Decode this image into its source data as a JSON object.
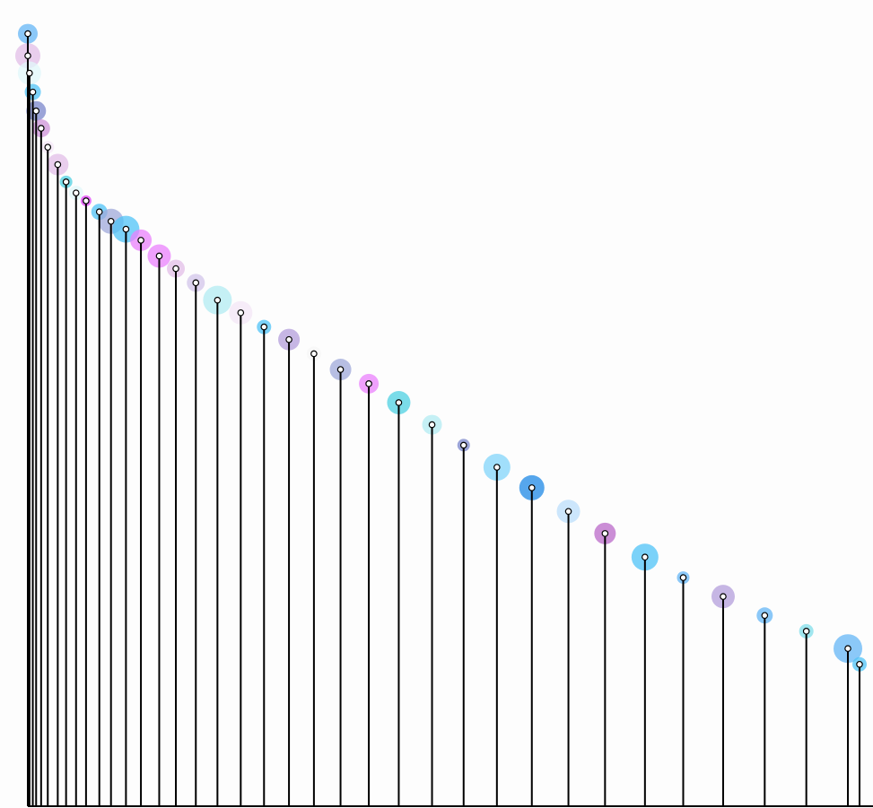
{
  "chart_data": {
    "type": "scatter",
    "title": "",
    "xlabel": "",
    "ylabel": "",
    "xlim": [
      0,
      50
    ],
    "ylim": [
      0,
      50
    ],
    "grid": false,
    "legend": "none",
    "points": [
      {
        "x": 0.0,
        "y": 49.0,
        "color": "#64b5f6",
        "size": 11
      },
      {
        "x": 0.0,
        "y": 47.6,
        "color": "#e1bee7",
        "size": 14
      },
      {
        "x": 0.1,
        "y": 46.5,
        "color": "#e0f7fa",
        "size": 13
      },
      {
        "x": 0.3,
        "y": 45.3,
        "color": "#4fc3f7",
        "size": 9
      },
      {
        "x": 0.5,
        "y": 44.1,
        "color": "#7986cb",
        "size": 11
      },
      {
        "x": 0.8,
        "y": 43.0,
        "color": "#ce93d8",
        "size": 10
      },
      {
        "x": 1.2,
        "y": 41.8,
        "color": "#f3e5f5",
        "size": 7
      },
      {
        "x": 1.8,
        "y": 40.7,
        "color": "#e1bee7",
        "size": 12
      },
      {
        "x": 2.3,
        "y": 39.6,
        "color": "#4dd0e1",
        "size": 7
      },
      {
        "x": 2.9,
        "y": 38.9,
        "color": "#e0f7fa",
        "size": 8
      },
      {
        "x": 3.5,
        "y": 38.4,
        "color": "#e040fb",
        "size": 6
      },
      {
        "x": 4.3,
        "y": 37.7,
        "color": "#4fc3f7",
        "size": 9
      },
      {
        "x": 5.0,
        "y": 37.1,
        "color": "#9fa8da",
        "size": 14
      },
      {
        "x": 5.9,
        "y": 36.6,
        "color": "#4fc3f7",
        "size": 15
      },
      {
        "x": 6.8,
        "y": 35.9,
        "color": "#ea80fc",
        "size": 12
      },
      {
        "x": 7.9,
        "y": 34.9,
        "color": "#ea80fc",
        "size": 13
      },
      {
        "x": 8.9,
        "y": 34.1,
        "color": "#e1bee7",
        "size": 10
      },
      {
        "x": 10.1,
        "y": 33.2,
        "color": "#d1c4e9",
        "size": 10
      },
      {
        "x": 11.4,
        "y": 32.1,
        "color": "#b2ebf2",
        "size": 16
      },
      {
        "x": 12.8,
        "y": 31.3,
        "color": "#f3e5f5",
        "size": 13
      },
      {
        "x": 14.2,
        "y": 30.4,
        "color": "#4fc3f7",
        "size": 8
      },
      {
        "x": 15.7,
        "y": 29.6,
        "color": "#b39ddb",
        "size": 12
      },
      {
        "x": 17.2,
        "y": 28.7,
        "color": "#f5f5f5",
        "size": 8
      },
      {
        "x": 18.8,
        "y": 27.7,
        "color": "#9fa8da",
        "size": 12
      },
      {
        "x": 20.5,
        "y": 26.8,
        "color": "#ea80fc",
        "size": 11
      },
      {
        "x": 22.3,
        "y": 25.6,
        "color": "#4dd0e1",
        "size": 13
      },
      {
        "x": 24.3,
        "y": 24.2,
        "color": "#b2ebf2",
        "size": 11
      },
      {
        "x": 26.2,
        "y": 22.9,
        "color": "#7986cb",
        "size": 7
      },
      {
        "x": 28.2,
        "y": 21.5,
        "color": "#81d4fa",
        "size": 15
      },
      {
        "x": 30.3,
        "y": 20.2,
        "color": "#1e88e5",
        "size": 14
      },
      {
        "x": 32.5,
        "y": 18.7,
        "color": "#bbdefb",
        "size": 13
      },
      {
        "x": 34.7,
        "y": 17.3,
        "color": "#ba68c8",
        "size": 12
      },
      {
        "x": 37.1,
        "y": 15.8,
        "color": "#4fc3f7",
        "size": 15
      },
      {
        "x": 39.4,
        "y": 14.5,
        "color": "#64b5f6",
        "size": 7
      },
      {
        "x": 41.8,
        "y": 13.3,
        "color": "#b39ddb",
        "size": 13
      },
      {
        "x": 44.3,
        "y": 12.1,
        "color": "#64b5f6",
        "size": 9
      },
      {
        "x": 46.8,
        "y": 11.1,
        "color": "#80deea",
        "size": 8
      },
      {
        "x": 49.3,
        "y": 10.0,
        "color": "#64b5f6",
        "size": 16
      },
      {
        "x": 51.8,
        "y": 9.0,
        "color": "#4fc3f7",
        "size": 8
      }
    ]
  }
}
